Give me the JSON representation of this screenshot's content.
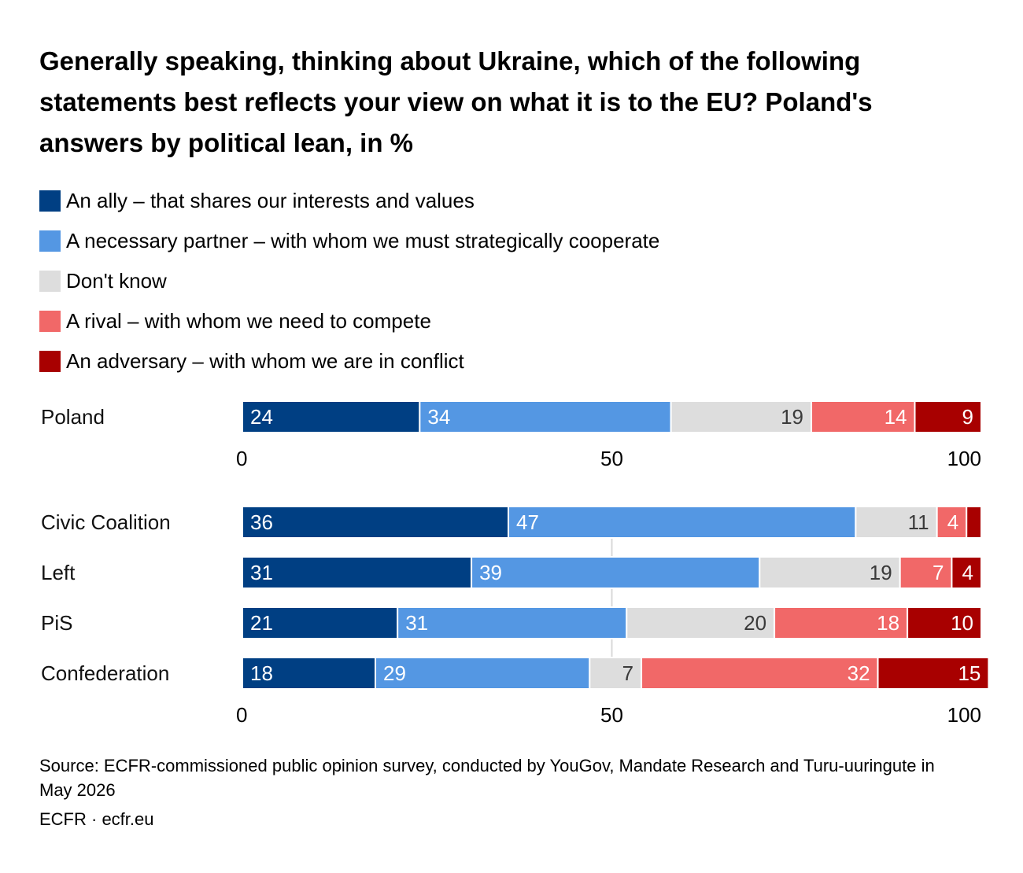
{
  "title": {
    "bold": "Generally speaking, thinking about Ukraine, which of the following statements best reflects your view on what it is to the EU?",
    "regular": "Poland's answers by political lean, in %"
  },
  "legend": [
    {
      "label": "An ally – that shares our interests and values",
      "color": "#003f83"
    },
    {
      "label": "A necessary partner – with whom we must strategically cooperate",
      "color": "#5497e3"
    },
    {
      "label": "Don't know",
      "color": "#dddddd"
    },
    {
      "label": "A rival – with whom we need to compete",
      "color": "#f16868"
    },
    {
      "label": "An adversary – with whom we are in conflict",
      "color": "#a80000"
    }
  ],
  "chart_data": {
    "type": "bar",
    "orientation": "horizontal",
    "stacked": true,
    "xlim": [
      0,
      100
    ],
    "xticks": [
      "0",
      "50",
      "100"
    ],
    "series": [
      {
        "name": "An ally – that shares our interests and values",
        "color": "#003f83"
      },
      {
        "name": "A necessary partner – with whom we must strategically cooperate",
        "color": "#5497e3"
      },
      {
        "name": "Don't know",
        "color": "#dddddd"
      },
      {
        "name": "A rival – with whom we need to compete",
        "color": "#f16868"
      },
      {
        "name": "An adversary – with whom we are in conflict",
        "color": "#a80000"
      }
    ],
    "groups": [
      {
        "categories": [
          "Poland"
        ],
        "values": [
          [
            24,
            34,
            19,
            14,
            9
          ]
        ]
      },
      {
        "categories": [
          "Civic Coalition",
          "Left",
          "PiS",
          "Confederation"
        ],
        "values": [
          [
            36,
            47,
            11,
            4,
            2
          ],
          [
            31,
            39,
            19,
            7,
            4
          ],
          [
            21,
            31,
            20,
            18,
            10
          ],
          [
            18,
            29,
            7,
            32,
            15
          ]
        ],
        "labels": [
          [
            "36",
            "47",
            "11",
            "4",
            ""
          ],
          [
            "31",
            "39",
            "19",
            "7",
            "4"
          ],
          [
            "21",
            "31",
            "20",
            "18",
            "10"
          ],
          [
            "18",
            "29",
            "7",
            "32",
            "15"
          ]
        ]
      }
    ]
  },
  "footer": {
    "source": "Source: ECFR-commissioned public opinion survey, conducted by YouGov, Mandate Research and Turu-uuringute in May 2026",
    "brand": "ECFR · ecfr.eu"
  }
}
